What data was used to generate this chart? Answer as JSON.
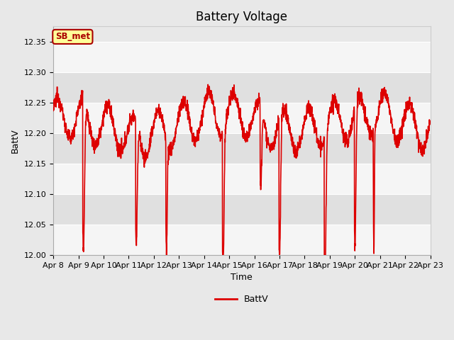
{
  "title": "Battery Voltage",
  "xlabel": "Time",
  "ylabel": "BattV",
  "ylim": [
    12.0,
    12.375
  ],
  "yticks": [
    12.0,
    12.05,
    12.1,
    12.15,
    12.2,
    12.25,
    12.3,
    12.35
  ],
  "xtick_labels": [
    "Apr 8",
    "Apr 9",
    "Apr 10",
    "Apr 11",
    "Apr 12",
    "Apr 13",
    "Apr 14",
    "Apr 15",
    "Apr 16",
    "Apr 17",
    "Apr 18",
    "Apr 19",
    "Apr 20",
    "Apr 21",
    "Apr 22",
    "Apr 23"
  ],
  "line_color": "#dd0000",
  "outer_bg": "#e8e8e8",
  "band_light": "#f5f5f5",
  "band_dark": "#e0e0e0",
  "legend_label": "BattV",
  "annotation_label": "SB_met",
  "annotation_bg": "#ffff99",
  "annotation_border": "#aa0000",
  "annotation_text_color": "#aa0000",
  "title_fontsize": 12,
  "axis_label_fontsize": 9,
  "tick_fontsize": 8
}
